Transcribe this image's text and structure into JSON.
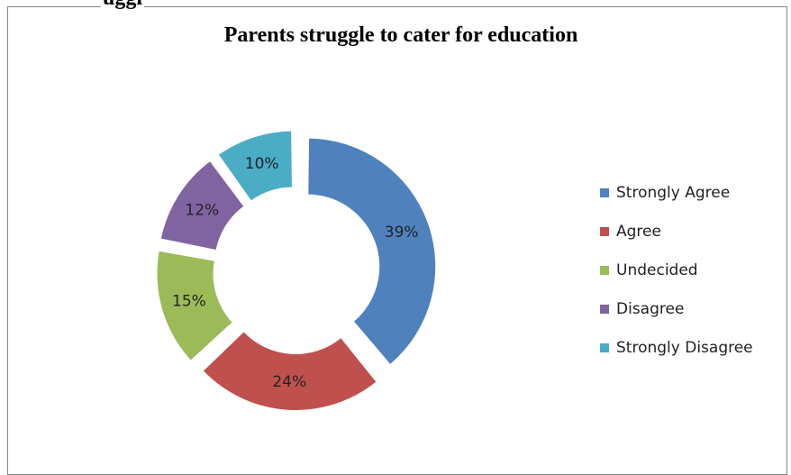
{
  "page": {
    "cut_heading": "uggl"
  },
  "chart_data": {
    "type": "pie",
    "variant": "exploded-donut",
    "title": "Parents struggle to cater for education",
    "categories": [
      "Strongly Agree",
      "Agree",
      "Undecided",
      "Disagree",
      "Strongly Disagree"
    ],
    "values": [
      39,
      24,
      15,
      12,
      10
    ],
    "data_labels": [
      "39%",
      "24%",
      "15%",
      "12%",
      "10%"
    ],
    "unit": "%",
    "colors": [
      "#4f81bd",
      "#c0504d",
      "#9bbb59",
      "#8064a2",
      "#4bacc6"
    ],
    "legend_position": "right",
    "start_angle": "top",
    "direction": "clockwise"
  }
}
